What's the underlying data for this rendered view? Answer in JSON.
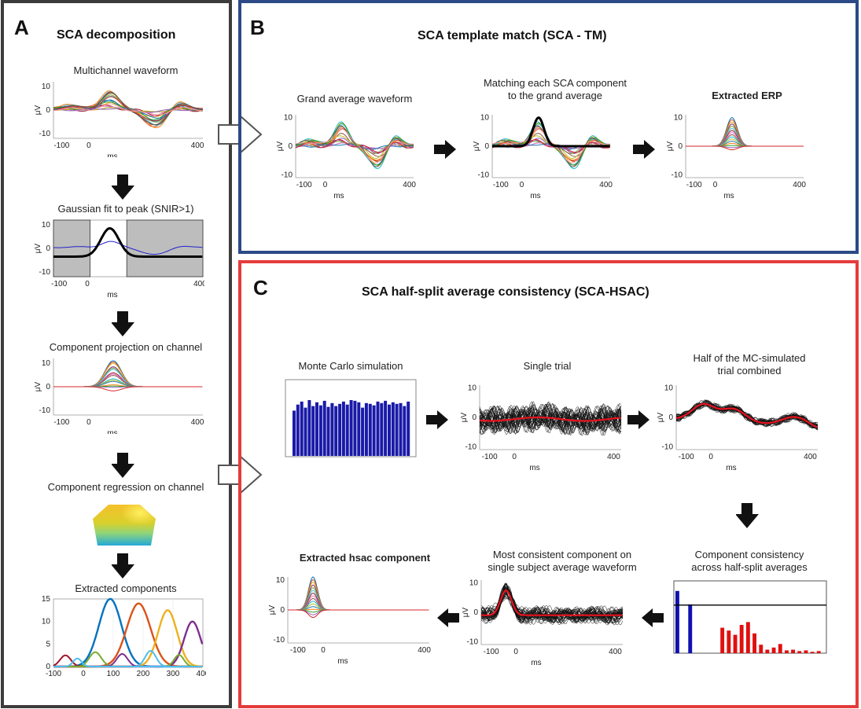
{
  "panels": {
    "a": {
      "letter": "A",
      "title": "SCA decomposition",
      "border_color": "#3c3c3c"
    },
    "b": {
      "letter": "B",
      "title": "SCA  template  match (SCA - TM)",
      "border_color": "#2b4a87"
    },
    "c": {
      "letter": "C",
      "title": "SCA  half-split average consistency (SCA-HSAC)",
      "border_color": "#e53b3b"
    }
  },
  "captions": {
    "a1": "Multichannel waveform",
    "a2": "Gaussian fit to peak (SNIR>1)",
    "a3": "Component projection on channel",
    "a4": "Component regression on channel",
    "a5": "Extracted components",
    "b1": "Grand average waveform",
    "b2_line1": "Matching each SCA component",
    "b2_line2": "to the grand average",
    "b3": "Extracted ERP",
    "c1": "Monte Carlo simulation",
    "c2": "Single trial",
    "c3_line1": "Half of the MC-simulated",
    "c3_line2": "trial combined",
    "c4_line1": "Component consistency",
    "c4_line2": "across half-split averages",
    "c5_line1": "Most consistent component on",
    "c5_line2": "single subject average waveform",
    "c6": "Extracted hsac component"
  },
  "axis": {
    "ylabel": "μV",
    "xlabel": "ms",
    "xticks": [
      "-100",
      "0",
      "400"
    ],
    "yticks": [
      "10",
      "0",
      "-10"
    ],
    "comp_yticks": [
      "15",
      "10",
      "5",
      "0"
    ],
    "comp_xticks": [
      "-100",
      "0",
      "100",
      "200",
      "300",
      "400"
    ]
  },
  "chart_data": [
    {
      "type": "bar",
      "panel": "C",
      "title": "Monte Carlo simulation",
      "values": [
        0.6,
        0.68,
        0.72,
        0.64,
        0.74,
        0.66,
        0.71,
        0.67,
        0.73,
        0.65,
        0.7,
        0.66,
        0.69,
        0.72,
        0.68,
        0.74,
        0.73,
        0.71,
        0.64,
        0.7,
        0.69,
        0.67,
        0.72,
        0.7,
        0.73,
        0.68,
        0.71,
        0.69,
        0.7,
        0.66,
        0.72
      ],
      "color": "#1a1aa8"
    },
    {
      "type": "bar",
      "panel": "C",
      "title": "Component consistency across half-split averages",
      "values": [
        0.88,
        0.0,
        0.69,
        0.0,
        0.0,
        0.0,
        0.0,
        0.36,
        0.32,
        0.26,
        0.4,
        0.44,
        0.28,
        0.12,
        0.05,
        0.08,
        0.13,
        0.04,
        0.05,
        0.03,
        0.04,
        0.02,
        0.03
      ],
      "colors": [
        "#1010b0",
        "#ffffff",
        "#1010b0",
        "#ffffff",
        "#ffffff",
        "#ffffff",
        "#ffffff",
        "#e01010",
        "#e01010",
        "#e01010",
        "#e01010",
        "#e01010",
        "#e01010",
        "#e01010",
        "#e01010",
        "#e01010",
        "#e01010",
        "#e01010",
        "#e01010",
        "#e01010",
        "#e01010",
        "#e01010",
        "#e01010"
      ],
      "threshold": 0.68
    },
    {
      "type": "line",
      "panel": "A",
      "title": "Extracted components",
      "x_range": [
        -100,
        400
      ],
      "ylim": [
        0,
        15
      ],
      "series": [
        {
          "center": 90,
          "amplitude": 15,
          "width": 38,
          "color": "#0072bd"
        },
        {
          "center": 185,
          "amplitude": 14,
          "width": 40,
          "color": "#d95319"
        },
        {
          "center": 282,
          "amplitude": 12.5,
          "width": 32,
          "color": "#edb120"
        },
        {
          "center": 365,
          "amplitude": 10,
          "width": 28,
          "color": "#7e2f8e"
        },
        {
          "center": 40,
          "amplitude": 3.2,
          "width": 20,
          "color": "#77ac30"
        },
        {
          "center": 225,
          "amplitude": 3.5,
          "width": 18,
          "color": "#4dbeee"
        },
        {
          "center": -60,
          "amplitude": 2.5,
          "width": 18,
          "color": "#a2142f"
        },
        {
          "center": 130,
          "amplitude": 2.8,
          "width": 18,
          "color": "#7e2f8e"
        },
        {
          "center": 320,
          "amplitude": 2.6,
          "width": 16,
          "color": "#77ac30"
        },
        {
          "center": -20,
          "amplitude": 1.8,
          "width": 14,
          "color": "#4dbeee"
        }
      ]
    }
  ]
}
